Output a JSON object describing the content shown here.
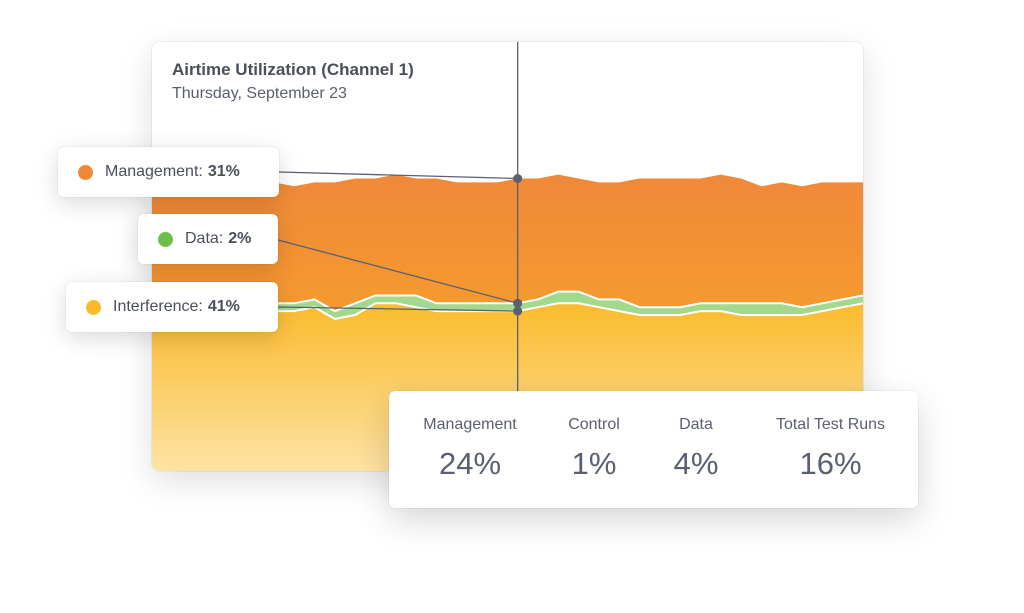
{
  "chart": {
    "title": "Airtime Utilization (Channel 1)",
    "subtitle": "Thursday, September 23"
  },
  "tooltips": [
    {
      "label": "Management:",
      "value": "31%",
      "color": "#f0883a"
    },
    {
      "label": "Data:",
      "value": "2%",
      "color": "#6cc04a"
    },
    {
      "label": "Interference:",
      "value": "41%",
      "color": "#fbbb2c"
    }
  ],
  "summary": [
    {
      "label": "Management",
      "value": "24%"
    },
    {
      "label": "Control",
      "value": "1%"
    },
    {
      "label": "Data",
      "value": "4%"
    },
    {
      "label": "Total Test Runs",
      "value": "16%"
    }
  ],
  "chart_data": {
    "type": "area",
    "stacked": true,
    "title": "Airtime Utilization (Channel 1)",
    "subtitle": "Thursday, September 23",
    "ylim": [
      0,
      100
    ],
    "grid": false,
    "series": [
      {
        "name": "Interference",
        "color": "#fbbb2c",
        "values": [
          41,
          42,
          41,
          41,
          42,
          41,
          41,
          41,
          42,
          39,
          40,
          43,
          43,
          42,
          41,
          41,
          41,
          41,
          41,
          42,
          43,
          43,
          42,
          41,
          40,
          40,
          40,
          41,
          41,
          40,
          40,
          40,
          40,
          41,
          42,
          43
        ]
      },
      {
        "name": "Data",
        "color": "#a3d98c",
        "values": [
          2,
          3,
          2,
          2,
          3,
          3,
          2,
          2,
          2,
          2,
          3,
          2,
          2,
          3,
          2,
          2,
          2,
          2,
          2,
          2,
          3,
          3,
          2,
          3,
          2,
          2,
          2,
          2,
          2,
          3,
          3,
          3,
          2,
          2,
          2,
          2
        ]
      },
      {
        "name": "Management",
        "color": "#f0883a",
        "values": [
          31,
          29,
          29,
          31,
          29,
          29,
          31,
          30,
          30,
          33,
          32,
          30,
          31,
          30,
          32,
          31,
          31,
          31,
          32,
          31,
          30,
          29,
          30,
          30,
          33,
          33,
          33,
          32,
          33,
          32,
          30,
          31,
          31,
          31,
          30,
          29
        ]
      }
    ],
    "crosshair_index": 18
  }
}
